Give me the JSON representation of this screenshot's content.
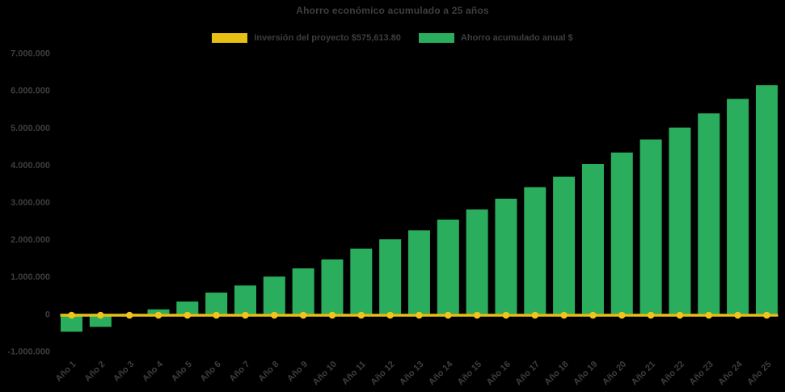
{
  "title": "Ahorro económico acumulado a 25 años",
  "legend": {
    "items": [
      {
        "label": "Inversión del proyecto $575,613.80",
        "color": "#E8C014"
      },
      {
        "label": "Ahorro acumulado anual $",
        "color": "#2BAD5E"
      }
    ]
  },
  "colors": {
    "background": "#000000",
    "text": "#3E3E3E",
    "bar_green": "#2BAD5E",
    "line_yellow": "#E8C014",
    "marker_yellow": "#F0C41C"
  },
  "chart_data": {
    "type": "bar",
    "title": "Ahorro económico acumulado a 25 años",
    "categories": [
      "Año 1",
      "Año 2",
      "Año 3",
      "Año 4",
      "Año 5",
      "Año 6",
      "Año 7",
      "Año 8",
      "Año 9",
      "Año 10",
      "Año 11",
      "Año 12",
      "Año 13",
      "Año 14",
      "Año 15",
      "Año 16",
      "Año 17",
      "Año 18",
      "Año 19",
      "Año 20",
      "Año 21",
      "Año 22",
      "Año 23",
      "Año 24",
      "Año 25"
    ],
    "series": [
      {
        "name": "Ahorro acumulado anual $",
        "type": "bar",
        "color": "#2BAD5E",
        "values": [
          -480000,
          -350000,
          -30000,
          120000,
          330000,
          570000,
          760000,
          1000000,
          1220000,
          1460000,
          1750000,
          2000000,
          2240000,
          2530000,
          2800000,
          3090000,
          3400000,
          3680000,
          4020000,
          4330000,
          4680000,
          5000000,
          5380000,
          5770000,
          6140000
        ]
      },
      {
        "name": "Inversión del proyecto $575,613.80",
        "type": "line",
        "color": "#E8C014",
        "marker_color": "#F0C41C",
        "plotted_value": 0,
        "values": [
          0,
          0,
          0,
          0,
          0,
          0,
          0,
          0,
          0,
          0,
          0,
          0,
          0,
          0,
          0,
          0,
          0,
          0,
          0,
          0,
          0,
          0,
          0,
          0,
          0
        ]
      }
    ],
    "ylim": [
      -1000000,
      7000000
    ],
    "yticks": [
      {
        "label": "7.000.000",
        "value": 7000000
      },
      {
        "label": "6.000.000",
        "value": 6000000
      },
      {
        "label": "5.000.000",
        "value": 5000000
      },
      {
        "label": "4.000.000",
        "value": 4000000
      },
      {
        "label": "3.000.000",
        "value": 3000000
      },
      {
        "label": "2.000.000",
        "value": 2000000
      },
      {
        "label": "1.000.000",
        "value": 1000000
      },
      {
        "label": "0",
        "value": 0
      },
      {
        "label": "-1.000.000",
        "value": -1000000
      }
    ],
    "grid": false,
    "legend_position": "top",
    "xlabel": "",
    "ylabel": ""
  }
}
